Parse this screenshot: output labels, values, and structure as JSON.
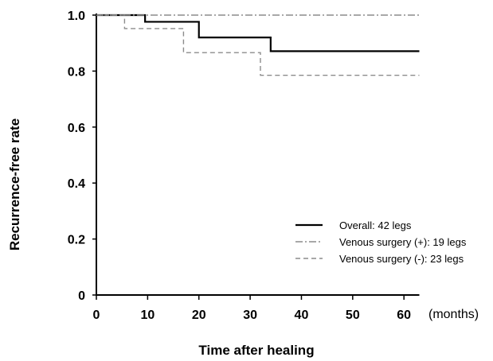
{
  "chart_data": {
    "type": "line",
    "xlabel": "Time after healing",
    "ylabel": "Recurrence-free rate",
    "x_unit": "(months)",
    "xlim": [
      0,
      63
    ],
    "ylim": [
      0,
      1.0
    ],
    "x_ticks": [
      "0",
      "10",
      "20",
      "30",
      "40",
      "50",
      "60"
    ],
    "x_tick_values": [
      0,
      10,
      20,
      30,
      40,
      50,
      60
    ],
    "y_ticks": [
      "0",
      "0.2",
      "0.4",
      "0.6",
      "0.8",
      "1.0"
    ],
    "y_tick_values": [
      0,
      0.2,
      0.4,
      0.6,
      0.8,
      1.0
    ],
    "grid": false,
    "legend_position": "bottom-right",
    "series": [
      {
        "name": "Overall: 42 legs",
        "style": "solid",
        "color": "#000000",
        "x": [
          0,
          9.5,
          20,
          34,
          63
        ],
        "y": [
          1.0,
          0.976,
          0.92,
          0.871,
          0.871
        ]
      },
      {
        "name": "Venous surgery (+): 19 legs",
        "style": "dashdot",
        "color": "#8c8c8c",
        "x": [
          0,
          63
        ],
        "y": [
          1.0,
          1.0
        ]
      },
      {
        "name": "Venous surgery (-): 23 legs",
        "style": "dashed",
        "color": "#8c8c8c",
        "x": [
          0,
          5.5,
          17,
          32,
          63
        ],
        "y": [
          1.0,
          0.952,
          0.866,
          0.785,
          0.785
        ]
      }
    ]
  }
}
